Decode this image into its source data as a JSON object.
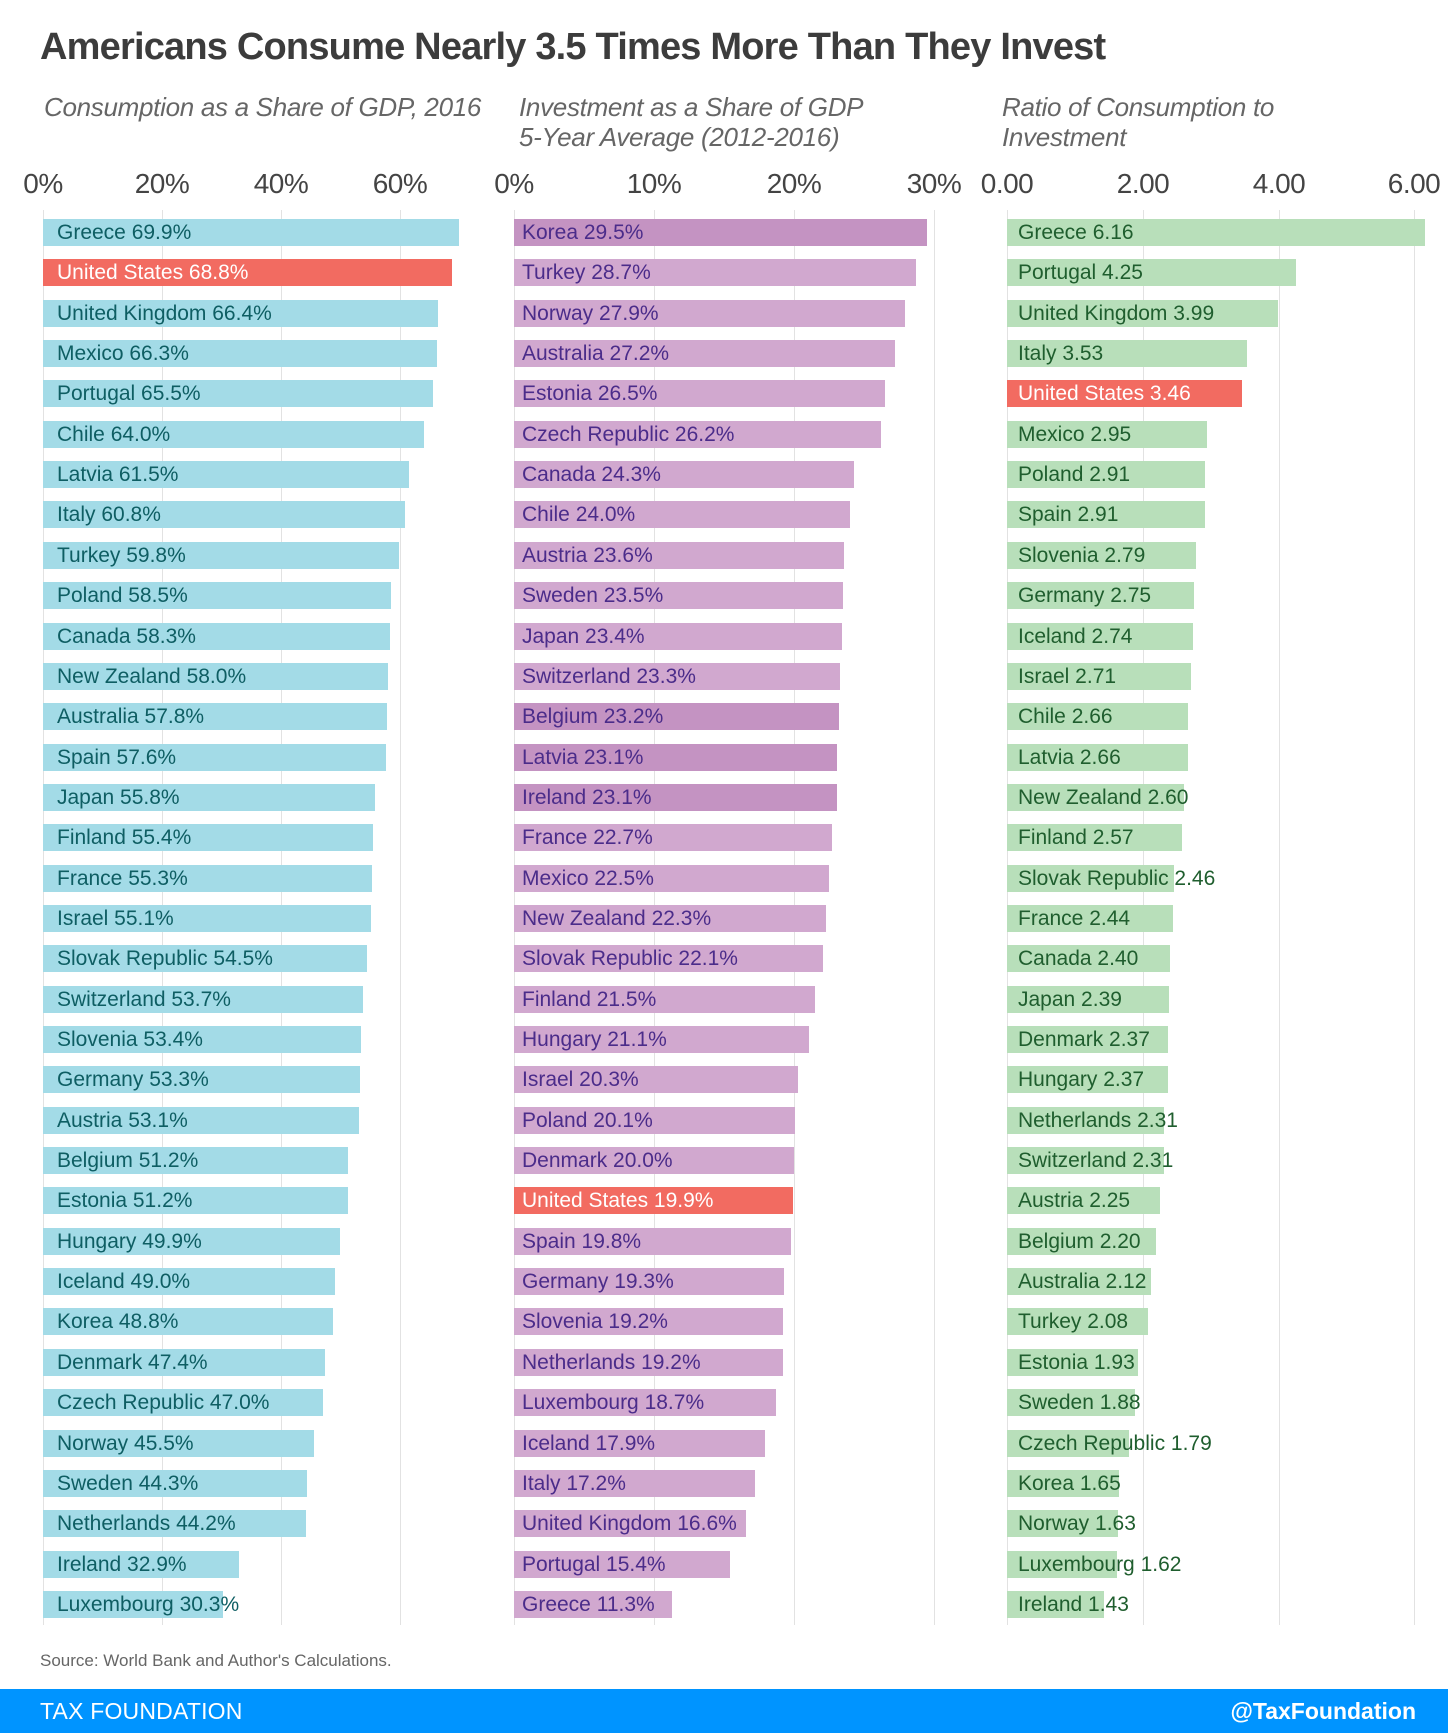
{
  "title": "Americans Consume Nearly 3.5 Times More Than They Invest",
  "source": "Source: World Bank and Author's Calculations.",
  "footer": {
    "brand": "TAX FOUNDATION",
    "handle": "@TaxFoundation"
  },
  "colors": {
    "consumption_bar": "#a3dbe7",
    "consumption_text": "#0e5e63",
    "investment_bar": "#d1a8cf",
    "investment_bar_dark": "#c493c2",
    "investment_text": "#4b2c8a",
    "ratio_bar": "#b8dfba",
    "ratio_text": "#1f5e2e",
    "highlight_bar": "#f26b61",
    "highlight_text": "#ffffff",
    "footer_bg": "#0094ff"
  },
  "chart_data": [
    {
      "type": "bar",
      "orientation": "horizontal",
      "title": "Consumption as a Share of GDP, 2016",
      "xlabel": "",
      "ylabel": "",
      "unit": "%",
      "xlim": [
        0,
        70
      ],
      "ticks": [
        0,
        20,
        40,
        60
      ],
      "tick_labels": [
        "0%",
        "20%",
        "40%",
        "60%"
      ],
      "grid": true,
      "highlight": "United States",
      "categories": [
        "Greece",
        "United States",
        "United Kingdom",
        "Mexico",
        "Portugal",
        "Chile",
        "Latvia",
        "Italy",
        "Turkey",
        "Poland",
        "Canada",
        "New Zealand",
        "Australia",
        "Spain",
        "Japan",
        "Finland",
        "France",
        "Israel",
        "Slovak Republic",
        "Switzerland",
        "Slovenia",
        "Germany",
        "Austria",
        "Belgium",
        "Estonia",
        "Hungary",
        "Iceland",
        "Korea",
        "Denmark",
        "Czech Republic",
        "Norway",
        "Sweden",
        "Netherlands",
        "Ireland",
        "Luxembourg"
      ],
      "values": [
        69.9,
        68.8,
        66.4,
        66.3,
        65.5,
        64.0,
        61.5,
        60.8,
        59.8,
        58.5,
        58.3,
        58.0,
        57.8,
        57.6,
        55.8,
        55.4,
        55.3,
        55.1,
        54.5,
        53.7,
        53.4,
        53.3,
        53.1,
        51.2,
        51.2,
        49.9,
        49.0,
        48.8,
        47.4,
        47.0,
        45.5,
        44.3,
        44.2,
        32.9,
        30.3
      ],
      "labels": [
        "Greece 69.9%",
        "United States 68.8%",
        "United Kingdom 66.4%",
        "Mexico 66.3%",
        "Portugal 65.5%",
        "Chile 64.0%",
        "Latvia 61.5%",
        "Italy 60.8%",
        "Turkey 59.8%",
        "Poland 58.5%",
        "Canada 58.3%",
        "New Zealand 58.0%",
        "Australia 57.8%",
        "Spain 57.6%",
        "Japan 55.8%",
        "Finland 55.4%",
        "France 55.3%",
        "Israel 55.1%",
        "Slovak Republic 54.5%",
        "Switzerland 53.7%",
        "Slovenia 53.4%",
        "Germany 53.3%",
        "Austria 53.1%",
        "Belgium 51.2%",
        "Estonia 51.2%",
        "Hungary 49.9%",
        "Iceland 49.0%",
        "Korea 48.8%",
        "Denmark 47.4%",
        "Czech Republic 47.0%",
        "Norway 45.5%",
        "Sweden 44.3%",
        "Netherlands 44.2%",
        "Ireland 32.9%",
        "Luxembourg 30.3%"
      ]
    },
    {
      "type": "bar",
      "orientation": "horizontal",
      "title": "Investment as a Share of GDP\n5-Year Average (2012-2016)",
      "xlabel": "",
      "ylabel": "",
      "unit": "%",
      "xlim": [
        0,
        30
      ],
      "ticks": [
        0,
        10,
        20,
        30
      ],
      "tick_labels": [
        "0%",
        "10%",
        "20%",
        "30%"
      ],
      "grid": true,
      "highlight": "United States",
      "dark_bars": [
        "Korea",
        "Belgium",
        "Latvia",
        "Ireland"
      ],
      "categories": [
        "Korea",
        "Turkey",
        "Norway",
        "Australia",
        "Estonia",
        "Czech Republic",
        "Canada",
        "Chile",
        "Austria",
        "Sweden",
        "Japan",
        "Switzerland",
        "Belgium",
        "Latvia",
        "Ireland",
        "France",
        "Mexico",
        "New Zealand",
        "Slovak Republic",
        "Finland",
        "Hungary",
        "Israel",
        "Poland",
        "Denmark",
        "United States",
        "Spain",
        "Germany",
        "Slovenia",
        "Netherlands",
        "Luxembourg",
        "Iceland",
        "Italy",
        "United Kingdom",
        "Portugal",
        "Greece"
      ],
      "values": [
        29.5,
        28.7,
        27.9,
        27.2,
        26.5,
        26.2,
        24.3,
        24.0,
        23.6,
        23.5,
        23.4,
        23.3,
        23.2,
        23.1,
        23.1,
        22.7,
        22.5,
        22.3,
        22.1,
        21.5,
        21.1,
        20.3,
        20.1,
        20.0,
        19.9,
        19.8,
        19.3,
        19.2,
        19.2,
        18.7,
        17.9,
        17.2,
        16.6,
        15.4,
        11.3
      ],
      "labels": [
        "Korea 29.5%",
        "Turkey 28.7%",
        "Norway 27.9%",
        "Australia 27.2%",
        "Estonia 26.5%",
        "Czech Republic 26.2%",
        "Canada 24.3%",
        "Chile 24.0%",
        "Austria 23.6%",
        "Sweden 23.5%",
        "Japan 23.4%",
        "Switzerland 23.3%",
        "Belgium 23.2%",
        "Latvia 23.1%",
        "Ireland 23.1%",
        "France 22.7%",
        "Mexico 22.5%",
        "New Zealand 22.3%",
        "Slovak Republic 22.1%",
        "Finland 21.5%",
        "Hungary 21.1%",
        "Israel 20.3%",
        "Poland 20.1%",
        "Denmark 20.0%",
        "United States 19.9%",
        "Spain 19.8%",
        "Germany 19.3%",
        "Slovenia 19.2%",
        "Netherlands 19.2%",
        "Luxembourg 18.7%",
        "Iceland 17.9%",
        "Italy 17.2%",
        "United Kingdom 16.6%",
        "Portugal 15.4%",
        "Greece 11.3%"
      ]
    },
    {
      "type": "bar",
      "orientation": "horizontal",
      "title": "Ratio of Consumption to\nInvestment",
      "xlabel": "",
      "ylabel": "",
      "unit": "ratio",
      "xlim": [
        0,
        6.2
      ],
      "ticks": [
        0,
        2,
        4,
        6
      ],
      "tick_labels": [
        "0.00",
        "2.00",
        "4.00",
        "6.00"
      ],
      "grid": true,
      "highlight": "United States",
      "categories": [
        "Greece",
        "Portugal",
        "United Kingdom",
        "Italy",
        "United States",
        "Mexico",
        "Poland",
        "Spain",
        "Slovenia",
        "Germany",
        "Iceland",
        "Israel",
        "Chile",
        "Latvia",
        "New Zealand",
        "Finland",
        "Slovak Republic",
        "France",
        "Canada",
        "Japan",
        "Denmark",
        "Hungary",
        "Netherlands",
        "Switzerland",
        "Austria",
        "Belgium",
        "Australia",
        "Turkey",
        "Estonia",
        "Sweden",
        "Czech Republic",
        "Korea",
        "Norway",
        "Luxembourg",
        "Ireland"
      ],
      "values": [
        6.16,
        4.25,
        3.99,
        3.53,
        3.46,
        2.95,
        2.91,
        2.91,
        2.79,
        2.75,
        2.74,
        2.71,
        2.66,
        2.66,
        2.6,
        2.57,
        2.46,
        2.44,
        2.4,
        2.39,
        2.37,
        2.37,
        2.31,
        2.31,
        2.25,
        2.2,
        2.12,
        2.08,
        1.93,
        1.88,
        1.79,
        1.65,
        1.63,
        1.62,
        1.43
      ],
      "labels": [
        "Greece 6.16",
        "Portugal 4.25",
        "United Kingdom 3.99",
        "Italy 3.53",
        "United States 3.46",
        "Mexico 2.95",
        "Poland 2.91",
        "Spain 2.91",
        "Slovenia 2.79",
        "Germany 2.75",
        "Iceland 2.74",
        "Israel 2.71",
        "Chile 2.66",
        "Latvia 2.66",
        "New Zealand 2.60",
        "Finland 2.57",
        "Slovak Republic 2.46",
        "France 2.44",
        "Canada 2.40",
        "Japan 2.39",
        "Denmark 2.37",
        "Hungary 2.37",
        "Netherlands 2.31",
        "Switzerland 2.31",
        "Austria 2.25",
        "Belgium 2.20",
        "Australia 2.12",
        "Turkey 2.08",
        "Estonia 1.93",
        "Sweden 1.88",
        "Czech Republic 1.79",
        "Korea 1.65",
        "Norway 1.63",
        "Luxembourg 1.62",
        "Ireland 1.43"
      ]
    }
  ]
}
